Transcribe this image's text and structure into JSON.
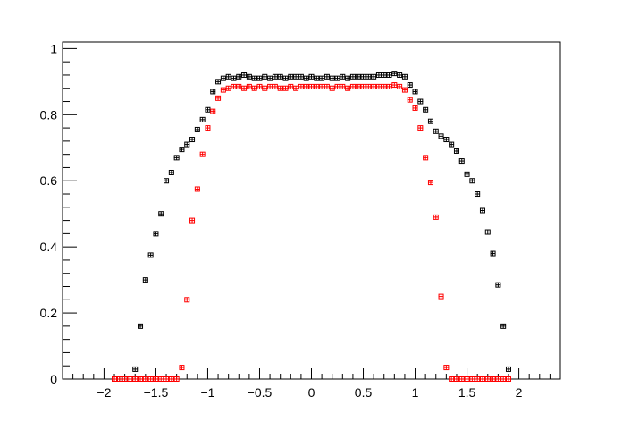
{
  "chart_data": {
    "type": "scatter",
    "title": "",
    "xlabel": "",
    "ylabel": "",
    "xlim": [
      -2.4,
      2.4
    ],
    "ylim": [
      0,
      1.02
    ],
    "grid": false,
    "legend": "none",
    "x_ticks": [
      "-2",
      "-1.5",
      "-1",
      "-0.5",
      "0",
      "0.5",
      "1",
      "1.5",
      "2"
    ],
    "y_ticks": [
      "0",
      "0.2",
      "0.4",
      "0.6",
      "0.8",
      "1"
    ],
    "series": [
      {
        "color": "#000000",
        "marker": "open-square-with-error",
        "x": [
          -1.9,
          -1.85,
          -1.8,
          -1.75,
          -1.7,
          -1.65,
          -1.6,
          -1.55,
          -1.5,
          -1.45,
          -1.4,
          -1.35,
          -1.3,
          -1.25,
          -1.2,
          -1.15,
          -1.1,
          -1.05,
          -1.0,
          -0.95,
          -0.9,
          -0.85,
          -0.8,
          -0.75,
          -0.7,
          -0.65,
          -0.6,
          -0.55,
          -0.5,
          -0.45,
          -0.4,
          -0.35,
          -0.3,
          -0.25,
          -0.2,
          -0.15,
          -0.1,
          -0.05,
          0.0,
          0.05,
          0.1,
          0.15,
          0.2,
          0.25,
          0.3,
          0.35,
          0.4,
          0.45,
          0.5,
          0.55,
          0.6,
          0.65,
          0.7,
          0.75,
          0.8,
          0.85,
          0.9,
          0.95,
          1.0,
          1.05,
          1.1,
          1.15,
          1.2,
          1.25,
          1.3,
          1.35,
          1.4,
          1.45,
          1.5,
          1.55,
          1.6,
          1.65,
          1.7,
          1.75,
          1.8,
          1.85,
          1.9
        ],
        "y": [
          0.0,
          0.0,
          0.0,
          0.0,
          0.03,
          0.16,
          0.3,
          0.375,
          0.44,
          0.5,
          0.6,
          0.625,
          0.67,
          0.695,
          0.71,
          0.725,
          0.755,
          0.785,
          0.815,
          0.87,
          0.9,
          0.91,
          0.915,
          0.91,
          0.915,
          0.92,
          0.915,
          0.91,
          0.91,
          0.915,
          0.91,
          0.915,
          0.915,
          0.91,
          0.915,
          0.915,
          0.915,
          0.91,
          0.915,
          0.91,
          0.91,
          0.915,
          0.91,
          0.91,
          0.915,
          0.91,
          0.915,
          0.915,
          0.915,
          0.915,
          0.915,
          0.92,
          0.92,
          0.92,
          0.925,
          0.92,
          0.915,
          0.89,
          0.87,
          0.84,
          0.815,
          0.78,
          0.75,
          0.735,
          0.725,
          0.71,
          0.69,
          0.66,
          0.62,
          0.6,
          0.56,
          0.51,
          0.445,
          0.38,
          0.285,
          0.16,
          0.03
        ]
      },
      {
        "color": "#ff0000",
        "marker": "open-square-with-error",
        "x": [
          -1.9,
          -1.85,
          -1.8,
          -1.75,
          -1.7,
          -1.65,
          -1.6,
          -1.55,
          -1.5,
          -1.45,
          -1.4,
          -1.35,
          -1.3,
          -1.25,
          -1.2,
          -1.15,
          -1.1,
          -1.05,
          -1.0,
          -0.95,
          -0.9,
          -0.85,
          -0.8,
          -0.75,
          -0.7,
          -0.65,
          -0.6,
          -0.55,
          -0.5,
          -0.45,
          -0.4,
          -0.35,
          -0.3,
          -0.25,
          -0.2,
          -0.15,
          -0.1,
          -0.05,
          0.0,
          0.05,
          0.1,
          0.15,
          0.2,
          0.25,
          0.3,
          0.35,
          0.4,
          0.45,
          0.5,
          0.55,
          0.6,
          0.65,
          0.7,
          0.75,
          0.8,
          0.85,
          0.9,
          0.95,
          1.0,
          1.05,
          1.1,
          1.15,
          1.2,
          1.25,
          1.3,
          1.35,
          1.4,
          1.45,
          1.5,
          1.55,
          1.6,
          1.65,
          1.7,
          1.75,
          1.8,
          1.85,
          1.9
        ],
        "y": [
          0.0,
          0.0,
          0.0,
          0.0,
          0.0,
          0.0,
          0.0,
          0.0,
          0.0,
          0.0,
          0.0,
          0.0,
          0.0,
          0.035,
          0.24,
          0.48,
          0.575,
          0.68,
          0.76,
          0.81,
          0.85,
          0.875,
          0.88,
          0.885,
          0.885,
          0.88,
          0.885,
          0.88,
          0.885,
          0.88,
          0.885,
          0.885,
          0.88,
          0.88,
          0.885,
          0.88,
          0.885,
          0.885,
          0.885,
          0.885,
          0.885,
          0.885,
          0.88,
          0.885,
          0.885,
          0.88,
          0.885,
          0.885,
          0.885,
          0.885,
          0.885,
          0.885,
          0.885,
          0.885,
          0.89,
          0.885,
          0.875,
          0.845,
          0.82,
          0.76,
          0.67,
          0.595,
          0.49,
          0.25,
          0.035,
          0.0,
          0.0,
          0.0,
          0.0,
          0.0,
          0.0,
          0.0,
          0.0,
          0.0,
          0.0,
          0.0,
          0.0
        ]
      }
    ]
  }
}
